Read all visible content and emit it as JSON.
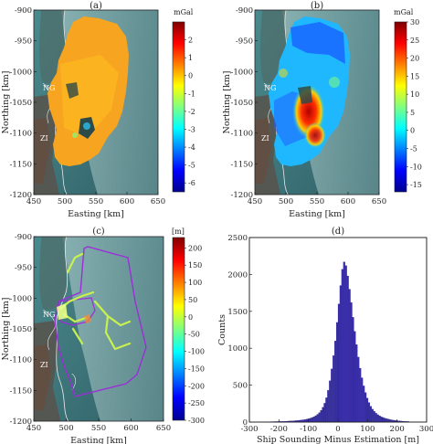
{
  "chart_data": [
    {
      "type": "heatmap",
      "panel": "(a)",
      "xlabel": "Easting [km]",
      "ylabel": "Northing [km]",
      "xlim": [
        450,
        650
      ],
      "ylim": [
        -1200,
        -900
      ],
      "xticks": [
        "450",
        "500",
        "550",
        "600",
        "650"
      ],
      "yticks": [
        "-900",
        "-950",
        "-1000",
        "-1050",
        "-1100",
        "-1150",
        "-1200"
      ],
      "annotations": [
        "NG",
        "ZI"
      ],
      "colorbar": {
        "unit": "mGal",
        "range": [
          -6.5,
          3
        ],
        "ticks": [
          "2",
          "1",
          "0",
          "-1",
          "-2",
          "-3",
          "-4",
          "-5",
          "-6"
        ]
      }
    },
    {
      "type": "heatmap",
      "panel": "(b)",
      "xlabel": "Easting [km]",
      "ylabel": "Northing [km]",
      "xlim": [
        450,
        650
      ],
      "ylim": [
        -1200,
        -900
      ],
      "xticks": [
        "450",
        "500",
        "550",
        "600",
        "650"
      ],
      "yticks": [
        "-900",
        "-950",
        "-1000",
        "-1050",
        "-1100",
        "-1150",
        "-1200"
      ],
      "annotations": [
        "NG",
        "ZI"
      ],
      "colorbar": {
        "unit": "mGal",
        "range": [
          -17,
          30
        ],
        "ticks": [
          "30",
          "25",
          "20",
          "15",
          "10",
          "5",
          "0",
          "-5",
          "-10",
          "-15"
        ]
      }
    },
    {
      "type": "heatmap",
      "panel": "(c)",
      "xlabel": "Easting [km]",
      "ylabel": "Northing [km]",
      "xlim": [
        450,
        650
      ],
      "ylim": [
        -1200,
        -900
      ],
      "xticks": [
        "450",
        "500",
        "550",
        "600",
        "650"
      ],
      "yticks": [
        "-900",
        "-950",
        "-1000",
        "-1050",
        "-1100",
        "-1150",
        "-1200"
      ],
      "annotations": [
        "NG",
        "ZI"
      ],
      "colorbar": {
        "unit": "[m]",
        "range": [
          -300,
          230
        ],
        "ticks": [
          "200",
          "150",
          "100",
          "50",
          "0",
          "-50",
          "-100",
          "-150",
          "-200",
          "-250",
          "-300"
        ]
      }
    },
    {
      "type": "bar",
      "panel": "(d)",
      "xlabel": "Ship Sounding Minus Estimation [m]",
      "ylabel": "Counts",
      "xlim": [
        -300,
        300
      ],
      "ylim": [
        0,
        2500
      ],
      "xticks": [
        "-300",
        "-200",
        "-100",
        "0",
        "100",
        "200",
        "300"
      ],
      "yticks": [
        "0",
        "500",
        "1000",
        "1500",
        "2000",
        "2500"
      ],
      "bin_width": 6,
      "bin_start": -240,
      "values": [
        5,
        5,
        6,
        6,
        7,
        7,
        8,
        9,
        10,
        10,
        11,
        12,
        14,
        15,
        16,
        18,
        20,
        22,
        25,
        28,
        31,
        35,
        40,
        46,
        53,
        62,
        73,
        87,
        105,
        128,
        160,
        200,
        255,
        330,
        430,
        560,
        720,
        900,
        1100,
        1350,
        1600,
        1850,
        2070,
        2170,
        2120,
        1980,
        1800,
        1620,
        1420,
        1230,
        1050,
        880,
        730,
        600,
        490,
        400,
        325,
        265,
        215,
        175,
        145,
        120,
        100,
        85,
        72,
        62,
        53,
        46,
        40,
        34,
        29,
        25,
        22,
        19,
        16,
        14,
        12,
        10,
        9,
        8
      ]
    }
  ],
  "colors": {
    "hist_fill": "#3a2fa8",
    "hist_edge": "#1a1a6e",
    "ocean": "#3f7a80",
    "ice": "#8fb5b5",
    "coast": "#e8e8e8",
    "survey_outline": "#9b2fd6",
    "bathy_track": "#c8f050"
  }
}
